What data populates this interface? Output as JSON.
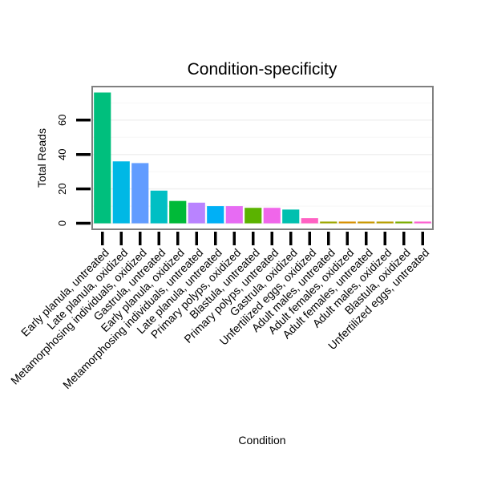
{
  "chart_data": {
    "type": "bar",
    "title": "Condition-specificity",
    "xlabel": "Condition",
    "ylabel": "Total Reads",
    "ylim": [
      -3,
      79
    ],
    "yticks": [
      0,
      20,
      40,
      60
    ],
    "grid": true,
    "legend": "none",
    "categories": [
      "Early planula, untreated",
      "Late planula, oxidized",
      "Metamorphosing individuals, oxidized",
      "Gastrula, untreated",
      "Early planula, oxidized",
      "Metamorphosing individuals, untreated",
      "Late planula, untreated",
      "Primary polyps, oxidized",
      "Blastula, untreated",
      "Primary polyps, untreated",
      "Gastrula, oxidized",
      "Unfertilized eggs, oxidized",
      "Adult males, untreated",
      "Adult females, oxidized",
      "Adult females, untreated",
      "Adult males, oxidized",
      "Blastula, oxidized",
      "Unfertilized eggs, untreated"
    ],
    "values": [
      76,
      36,
      35,
      19,
      13,
      12,
      10,
      10,
      9,
      9,
      8,
      3,
      1,
      1,
      1,
      1,
      1,
      1
    ],
    "colors": [
      "#00BF7D",
      "#00B8E5",
      "#619CFF",
      "#00BFC4",
      "#00BA38",
      "#B983FF",
      "#00B0F6",
      "#E76BF3",
      "#5BB300",
      "#F066EA",
      "#00C0AF",
      "#FF61C3",
      "#9EA700",
      "#D89000",
      "#C99800",
      "#B79F00",
      "#7CAE00",
      "#FD61D1"
    ]
  }
}
